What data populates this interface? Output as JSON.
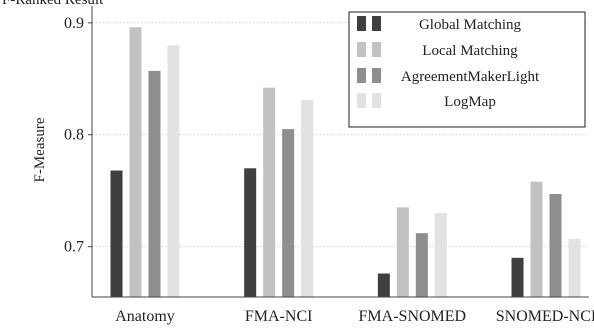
{
  "chart_data": {
    "type": "bar",
    "title_fragment": "F-Ranked Result",
    "ylabel": "F-Measure",
    "xlabel": "",
    "categories": [
      "Anatomy",
      "FMA-NCI",
      "FMA-SNOMED",
      "SNOMED-NCI"
    ],
    "ylim": [
      0.655,
      0.915
    ],
    "yticks": [
      "0.7",
      "0.8",
      "0.9"
    ],
    "ytick_values": [
      0.7,
      0.8,
      0.9
    ],
    "grid": "horizontal",
    "legend_position": "top-right",
    "series": [
      {
        "name": "Global Matching",
        "color": "#3f3f3f",
        "values": [
          0.768,
          0.77,
          0.676,
          0.69
        ]
      },
      {
        "name": "Local Matching",
        "color": "#c2c2c2",
        "values": [
          0.896,
          0.842,
          0.735,
          0.758
        ]
      },
      {
        "name": "AgreementMakerLight",
        "color": "#8e8e8e",
        "values": [
          0.857,
          0.805,
          0.712,
          0.747
        ]
      },
      {
        "name": "LogMap",
        "color": "#e2e2e2",
        "values": [
          0.88,
          0.831,
          0.73,
          0.707
        ]
      }
    ]
  }
}
